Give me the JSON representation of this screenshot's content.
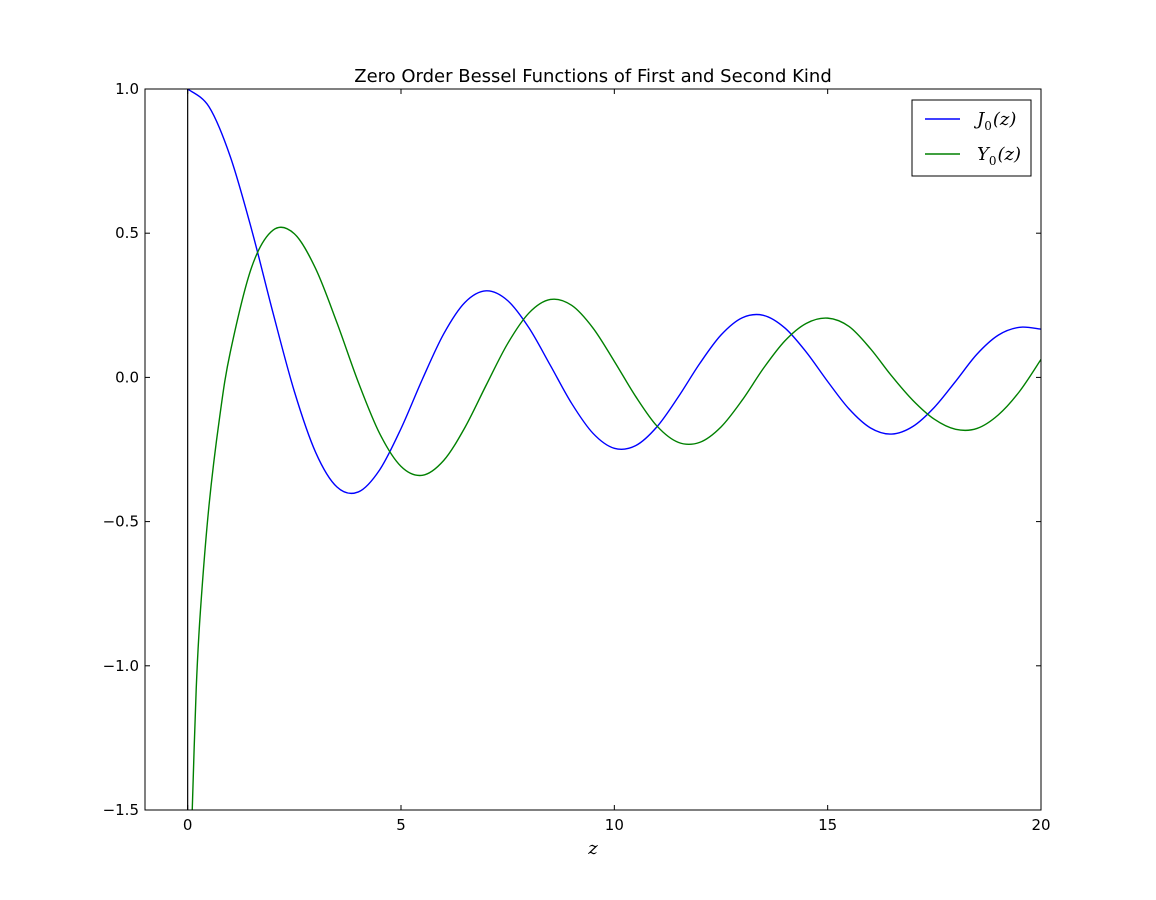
{
  "chart_data": {
    "type": "line",
    "title": "Zero Order Bessel Functions of First and Second Kind",
    "xlabel": "z",
    "ylabel": "",
    "xlim": [
      -1,
      20
    ],
    "ylim": [
      -1.5,
      1.0
    ],
    "xticks": [
      0,
      5,
      10,
      15,
      20
    ],
    "xtick_labels": [
      "0",
      "5",
      "10",
      "15",
      "20"
    ],
    "yticks": [
      -1.5,
      -1.0,
      -0.5,
      0.0,
      0.5,
      1.0
    ],
    "ytick_labels": [
      "−1.5",
      "−1.0",
      "−0.5",
      "0.0",
      "0.5",
      "1.0"
    ],
    "grid": false,
    "legend_position": "top-right",
    "vertical_reference_line_x": 0,
    "series": [
      {
        "name": "J_0(z)",
        "legend_base": "J",
        "legend_sub": "0",
        "legend_arg": "(z)",
        "color": "#0000ff",
        "x": [
          0,
          0.5,
          1,
          1.5,
          2,
          2.5,
          3,
          3.5,
          4,
          4.5,
          5,
          5.5,
          6,
          6.5,
          7,
          7.5,
          8,
          8.5,
          9,
          9.5,
          10,
          10.5,
          11,
          11.5,
          12,
          12.5,
          13,
          13.5,
          14,
          14.5,
          15,
          15.5,
          16,
          16.5,
          17,
          17.5,
          18,
          18.5,
          19,
          19.5,
          20
        ],
        "y": [
          1.0,
          0.9385,
          0.7652,
          0.5118,
          0.2239,
          -0.0484,
          -0.2601,
          -0.3801,
          -0.3971,
          -0.3205,
          -0.1776,
          -0.0068,
          0.1506,
          0.2601,
          0.3001,
          0.2663,
          0.1717,
          0.0419,
          -0.0903,
          -0.1939,
          -0.2459,
          -0.2366,
          -0.1712,
          -0.0677,
          0.0477,
          0.1469,
          0.2069,
          0.215,
          0.1711,
          0.0875,
          -0.0142,
          -0.1092,
          -0.1749,
          -0.1965,
          -0.1699,
          -0.104,
          -0.0134,
          0.0807,
          0.1466,
          0.1738,
          0.167
        ]
      },
      {
        "name": "Y_0(z)",
        "legend_base": "Y",
        "legend_sub": "0",
        "legend_arg": "(z)",
        "color": "#008000",
        "x": [
          0.1,
          0.2,
          0.3,
          0.5,
          0.75,
          1,
          1.5,
          2,
          2.5,
          3,
          3.5,
          4,
          4.5,
          5,
          5.5,
          6,
          6.5,
          7,
          7.5,
          8,
          8.5,
          9,
          9.5,
          10,
          10.5,
          11,
          11.5,
          12,
          12.5,
          13,
          13.5,
          14,
          14.5,
          15,
          15.5,
          16,
          16.5,
          17,
          17.5,
          18,
          18.5,
          19,
          19.5,
          20
        ],
        "y": [
          -1.5342,
          -1.0811,
          -0.8073,
          -0.4445,
          -0.1372,
          0.0883,
          0.3824,
          0.5104,
          0.4981,
          0.3769,
          0.189,
          -0.0169,
          -0.1947,
          -0.3085,
          -0.3395,
          -0.2882,
          -0.1732,
          -0.0259,
          0.1173,
          0.2235,
          0.2702,
          0.2499,
          0.1712,
          0.0557,
          -0.066,
          -0.1688,
          -0.2252,
          -0.2252,
          -0.1718,
          -0.0782,
          0.0326,
          0.1272,
          0.1875,
          0.2055,
          0.1766,
          0.1,
          0.0049,
          -0.08,
          -0.145,
          -0.18,
          -0.177,
          -0.13,
          -0.048,
          0.0626
        ]
      }
    ]
  }
}
